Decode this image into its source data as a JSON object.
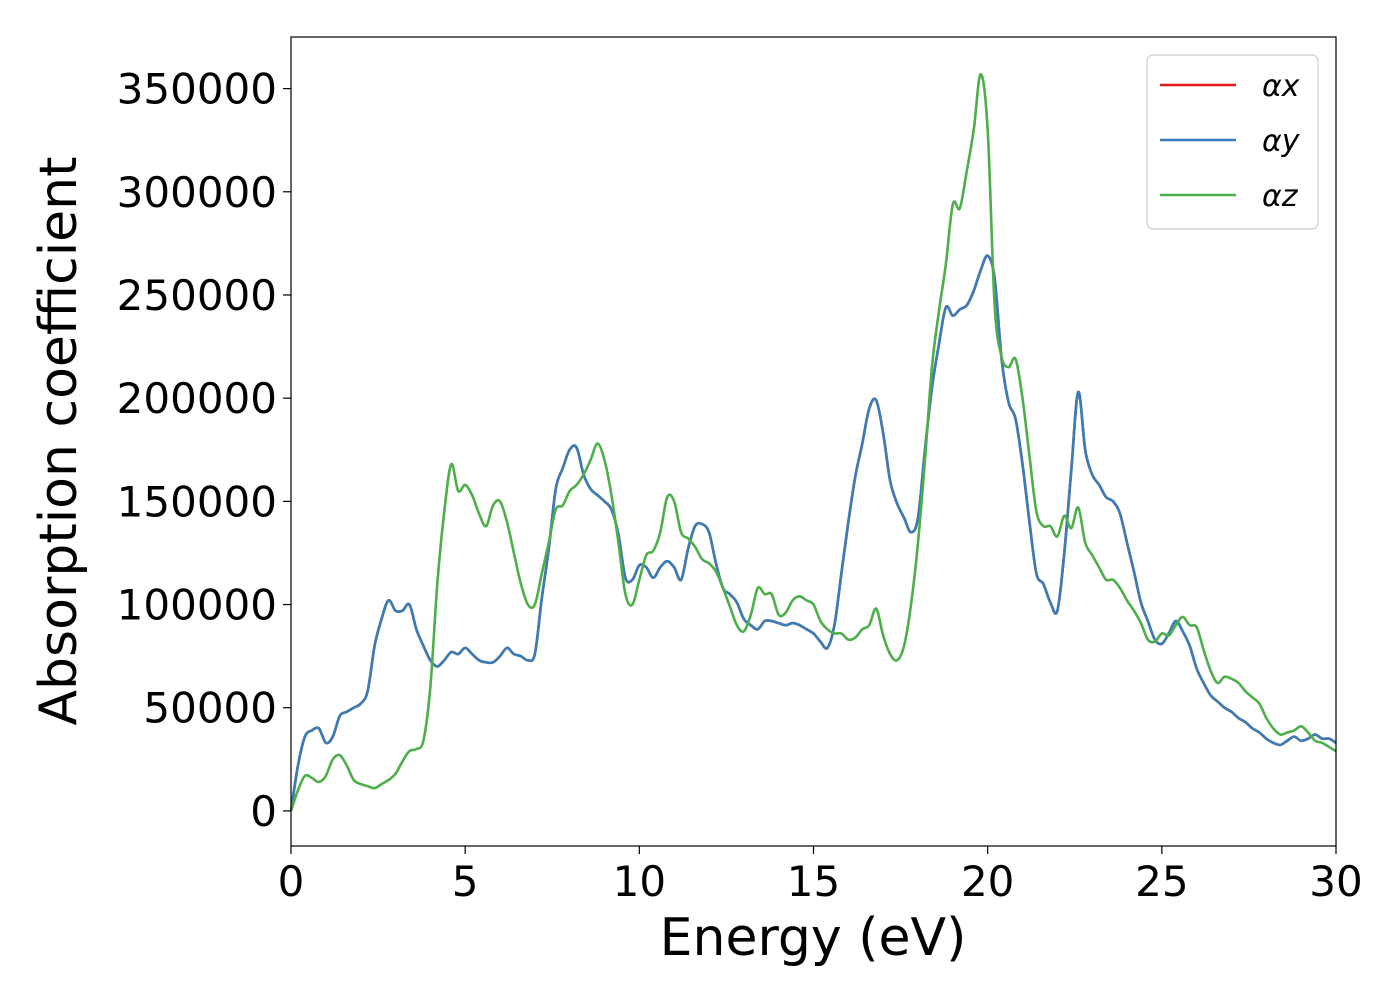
{
  "chart_data": {
    "type": "line",
    "xlabel": "Energy (eV)",
    "ylabel": "Absorption coefficient",
    "xlim": [
      0,
      30
    ],
    "ylim": [
      -17000,
      375000
    ],
    "x_ticks": [
      0,
      5,
      10,
      15,
      20,
      25,
      30
    ],
    "x_tick_labels": [
      "0",
      "5",
      "10",
      "15",
      "20",
      "25",
      "30"
    ],
    "y_ticks": [
      0,
      50000,
      100000,
      150000,
      200000,
      250000,
      300000,
      350000
    ],
    "y_tick_labels": [
      "0",
      "50000",
      "100000",
      "150000",
      "200000",
      "250000",
      "300000",
      "350000"
    ],
    "grid": false,
    "legend_position": "top-right",
    "x": [
      0,
      0.2,
      0.4,
      0.6,
      0.8,
      1.0,
      1.2,
      1.4,
      1.6,
      1.8,
      2.0,
      2.2,
      2.4,
      2.6,
      2.8,
      3.0,
      3.2,
      3.4,
      3.6,
      3.8,
      4.0,
      4.2,
      4.4,
      4.6,
      4.8,
      5.0,
      5.2,
      5.4,
      5.6,
      5.8,
      6.0,
      6.2,
      6.4,
      6.6,
      6.8,
      7.0,
      7.2,
      7.4,
      7.6,
      7.8,
      8.0,
      8.2,
      8.4,
      8.6,
      8.8,
      9.0,
      9.2,
      9.4,
      9.6,
      9.8,
      10.0,
      10.2,
      10.4,
      10.6,
      10.8,
      11.0,
      11.2,
      11.4,
      11.6,
      11.8,
      12.0,
      12.2,
      12.4,
      12.6,
      12.8,
      13.0,
      13.2,
      13.4,
      13.6,
      13.8,
      14.0,
      14.2,
      14.4,
      14.6,
      14.8,
      15.0,
      15.2,
      15.4,
      15.6,
      15.8,
      16.0,
      16.2,
      16.4,
      16.6,
      16.8,
      17.0,
      17.2,
      17.4,
      17.6,
      17.8,
      18.0,
      18.2,
      18.4,
      18.6,
      18.8,
      19.0,
      19.2,
      19.4,
      19.6,
      19.8,
      20.0,
      20.2,
      20.4,
      20.6,
      20.8,
      21.0,
      21.2,
      21.4,
      21.6,
      21.8,
      22.0,
      22.2,
      22.4,
      22.6,
      22.8,
      23.0,
      23.2,
      23.4,
      23.6,
      23.8,
      24.0,
      24.2,
      24.4,
      24.6,
      24.8,
      25.0,
      25.2,
      25.4,
      25.6,
      25.8,
      26.0,
      26.2,
      26.4,
      26.6,
      26.8,
      27.0,
      27.2,
      27.4,
      27.6,
      27.8,
      28.0,
      28.2,
      28.4,
      28.6,
      28.8,
      29.0,
      29.2,
      29.4,
      29.6,
      29.8,
      30.0
    ],
    "series": [
      {
        "name": "αx",
        "color": "#e41a1c",
        "values": [
          0,
          22000,
          36000,
          39000,
          40000,
          33000,
          36000,
          46000,
          48000,
          50000,
          52000,
          58000,
          80000,
          93000,
          102000,
          97000,
          97000,
          100000,
          88000,
          80000,
          73000,
          70000,
          73000,
          77000,
          76000,
          79000,
          76000,
          73000,
          72000,
          72000,
          75000,
          79000,
          76000,
          75000,
          73000,
          76000,
          103000,
          127000,
          156000,
          166000,
          175000,
          176000,
          163000,
          156000,
          153000,
          150000,
          146000,
          134000,
          113000,
          112000,
          119000,
          118000,
          113000,
          118000,
          121000,
          118000,
          112000,
          127000,
          138000,
          139000,
          135000,
          120000,
          108000,
          105000,
          101000,
          93000,
          90000,
          88000,
          92000,
          92000,
          91000,
          90000,
          91000,
          90000,
          88000,
          86000,
          82000,
          79000,
          90000,
          115000,
          140000,
          162000,
          178000,
          195000,
          199000,
          183000,
          160000,
          149000,
          142000,
          135000,
          142000,
          175000,
          205000,
          226000,
          244000,
          240000,
          243000,
          245000,
          252000,
          262000,
          269000,
          258000,
          219000,
          198000,
          190000,
          168000,
          140000,
          115000,
          110000,
          101000,
          97000,
          125000,
          165000,
          203000,
          175000,
          163000,
          158000,
          152000,
          150000,
          144000,
          130000,
          116000,
          101000,
          92000,
          83000,
          81000,
          86000,
          92000,
          87000,
          80000,
          69000,
          62000,
          56000,
          53000,
          50000,
          48000,
          45000,
          43000,
          40000,
          38000,
          35000,
          33000,
          32000,
          34000,
          36000,
          34000,
          35000,
          37000,
          35000,
          35000,
          33000
        ]
      },
      {
        "name": "αy",
        "color": "#377eb8",
        "values": [
          0,
          22000,
          36000,
          39000,
          40000,
          33000,
          36000,
          46000,
          48000,
          50000,
          52000,
          58000,
          80000,
          93000,
          102000,
          97000,
          97000,
          100000,
          88000,
          80000,
          73000,
          70000,
          73000,
          77000,
          76000,
          79000,
          76000,
          73000,
          72000,
          72000,
          75000,
          79000,
          76000,
          75000,
          73000,
          76000,
          103000,
          127000,
          156000,
          166000,
          175000,
          176000,
          163000,
          156000,
          153000,
          150000,
          146000,
          134000,
          113000,
          112000,
          119000,
          118000,
          113000,
          118000,
          121000,
          118000,
          112000,
          127000,
          138000,
          139000,
          135000,
          120000,
          108000,
          105000,
          101000,
          93000,
          90000,
          88000,
          92000,
          92000,
          91000,
          90000,
          91000,
          90000,
          88000,
          86000,
          82000,
          79000,
          90000,
          115000,
          140000,
          162000,
          178000,
          195000,
          199000,
          183000,
          160000,
          149000,
          142000,
          135000,
          142000,
          175000,
          205000,
          226000,
          244000,
          240000,
          243000,
          245000,
          252000,
          262000,
          269000,
          258000,
          219000,
          198000,
          190000,
          168000,
          140000,
          115000,
          110000,
          101000,
          97000,
          125000,
          165000,
          203000,
          175000,
          163000,
          158000,
          152000,
          150000,
          144000,
          130000,
          116000,
          101000,
          92000,
          83000,
          81000,
          86000,
          92000,
          87000,
          80000,
          69000,
          62000,
          56000,
          53000,
          50000,
          48000,
          45000,
          43000,
          40000,
          38000,
          35000,
          33000,
          32000,
          34000,
          36000,
          34000,
          35000,
          37000,
          35000,
          35000,
          33000
        ]
      },
      {
        "name": "αz",
        "color": "#4daf4a",
        "values": [
          0,
          10000,
          17000,
          16000,
          14000,
          17000,
          25000,
          27000,
          22000,
          15000,
          13000,
          12000,
          11000,
          13000,
          15000,
          18000,
          24000,
          29000,
          30000,
          34000,
          60000,
          110000,
          145000,
          168000,
          155000,
          158000,
          153000,
          144000,
          138000,
          148000,
          150000,
          140000,
          125000,
          110000,
          100000,
          100000,
          115000,
          130000,
          146000,
          148000,
          155000,
          158000,
          163000,
          170000,
          178000,
          170000,
          153000,
          130000,
          105000,
          100000,
          112000,
          124000,
          126000,
          135000,
          152000,
          150000,
          135000,
          132000,
          128000,
          122000,
          120000,
          116000,
          108000,
          99000,
          90000,
          87000,
          95000,
          108000,
          105000,
          105000,
          95000,
          96000,
          102000,
          104000,
          102000,
          100000,
          92000,
          88000,
          86000,
          86000,
          83000,
          84000,
          88000,
          90000,
          98000,
          85000,
          76000,
          73000,
          80000,
          100000,
          130000,
          170000,
          215000,
          242000,
          265000,
          294000,
          292000,
          310000,
          330000,
          357000,
          330000,
          245000,
          220000,
          215000,
          219000,
          200000,
          172000,
          145000,
          138000,
          138000,
          133000,
          143000,
          137000,
          147000,
          130000,
          124000,
          118000,
          112000,
          112000,
          108000,
          102000,
          97000,
          91000,
          83000,
          82000,
          86000,
          85000,
          90000,
          94000,
          90000,
          89000,
          78000,
          68000,
          62000,
          65000,
          64000,
          62000,
          58000,
          55000,
          52000,
          45000,
          40000,
          37000,
          38000,
          39000,
          41000,
          38000,
          34000,
          33000,
          31000,
          29000
        ]
      }
    ]
  }
}
